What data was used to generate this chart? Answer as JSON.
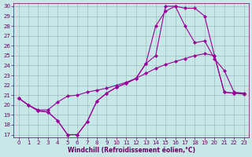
{
  "xlabel": "Windchill (Refroidissement éolien,°C)",
  "ylabel": "",
  "bg_color": "#c8e8e8",
  "line_color": "#990099",
  "xlim": [
    -0.5,
    23.5
  ],
  "ylim": [
    16.7,
    30.3
  ],
  "xticks": [
    0,
    1,
    2,
    3,
    4,
    5,
    6,
    7,
    8,
    9,
    10,
    11,
    12,
    13,
    14,
    15,
    16,
    17,
    18,
    19,
    20,
    21,
    22,
    23
  ],
  "yticks": [
    17,
    18,
    19,
    20,
    21,
    22,
    23,
    24,
    25,
    26,
    27,
    28,
    29,
    30
  ],
  "line1_x": [
    0,
    1,
    2,
    3,
    4,
    5,
    6,
    7,
    8,
    9,
    10,
    11,
    12,
    13,
    14,
    15,
    16,
    17,
    18,
    19,
    20,
    21,
    22,
    23
  ],
  "line1_y": [
    20.7,
    20.0,
    19.4,
    19.3,
    18.4,
    17.0,
    17.0,
    18.3,
    20.4,
    21.2,
    21.8,
    22.2,
    22.7,
    24.2,
    25.0,
    30.0,
    30.0,
    28.0,
    26.3,
    26.5,
    24.7,
    23.5,
    21.3,
    21.2
  ],
  "line2_x": [
    0,
    1,
    2,
    3,
    4,
    5,
    6,
    7,
    8,
    9,
    10,
    11,
    12,
    13,
    14,
    15,
    16,
    17,
    18,
    19,
    20,
    21,
    22,
    23
  ],
  "line2_y": [
    20.7,
    20.0,
    19.4,
    19.3,
    18.4,
    17.0,
    17.0,
    18.3,
    20.4,
    21.2,
    21.8,
    22.2,
    22.7,
    24.2,
    28.0,
    29.5,
    30.0,
    29.8,
    29.8,
    29.0,
    25.0,
    21.3,
    21.2,
    21.2
  ],
  "line3_x": [
    0,
    1,
    2,
    3,
    4,
    5,
    6,
    7,
    8,
    9,
    10,
    11,
    12,
    13,
    14,
    15,
    16,
    17,
    18,
    19,
    20,
    21,
    22,
    23
  ],
  "line3_y": [
    20.7,
    20.0,
    19.5,
    19.5,
    20.3,
    20.9,
    21.0,
    21.3,
    21.5,
    21.7,
    22.0,
    22.3,
    22.7,
    23.2,
    23.7,
    24.1,
    24.4,
    24.7,
    25.0,
    25.2,
    25.0,
    21.3,
    21.2,
    21.1
  ],
  "marker": "D",
  "marker_size": 2.5,
  "grid_color": "#9bbfbf",
  "font_color": "#660066",
  "tick_fontsize": 5.0,
  "xlabel_fontsize": 5.5
}
